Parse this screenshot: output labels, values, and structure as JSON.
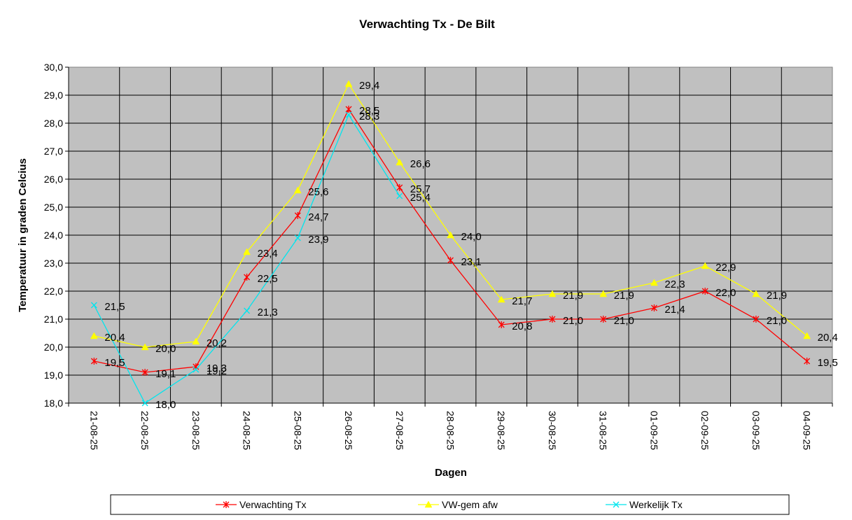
{
  "chart_data": {
    "type": "line",
    "title": "Verwachting Tx - De Bilt",
    "xlabel": "Dagen",
    "ylabel": "Temperatuur in graden Celcius",
    "ylim": [
      18.0,
      30.0
    ],
    "ystep": 1.0,
    "grid": true,
    "legend_position": "bottom",
    "plot_background": "#c0c0c0",
    "categories": [
      "21-08-25",
      "22-08-25",
      "23-08-25",
      "24-08-25",
      "25-08-25",
      "26-08-25",
      "27-08-25",
      "28-08-25",
      "29-08-25",
      "30-08-25",
      "31-08-25",
      "01-09-25",
      "02-09-25",
      "03-09-25",
      "04-09-25"
    ],
    "series": [
      {
        "name": "Verwachting Tx",
        "color": "#ff0000",
        "marker": "star",
        "values": [
          19.5,
          19.1,
          19.3,
          22.5,
          24.7,
          28.5,
          25.7,
          23.1,
          20.8,
          21.0,
          21.0,
          21.4,
          22.0,
          21.0,
          19.5
        ],
        "labels": [
          "19,5",
          "19,1",
          "19,3",
          "22,5",
          "24,7",
          "28,5",
          "25,7",
          "23,1",
          "20,8",
          "21,0",
          "21,0",
          "21,4",
          "22,0",
          "21,0",
          "19,5"
        ]
      },
      {
        "name": "VW-gem afw",
        "color": "#ffff00",
        "marker": "triangle",
        "values": [
          20.4,
          20.0,
          20.2,
          23.4,
          25.6,
          29.4,
          26.6,
          24.0,
          21.7,
          21.9,
          21.9,
          22.3,
          22.9,
          21.9,
          20.4
        ],
        "labels": [
          "20,4",
          "20,0",
          "20,2",
          "23,4",
          "25,6",
          "29,4",
          "26,6",
          "24,0",
          "21,7",
          "21,9",
          "21,9",
          "22,3",
          "22,9",
          "21,9",
          "20,4"
        ]
      },
      {
        "name": "Werkelijk Tx",
        "color": "#00e5ee",
        "marker": "x",
        "values": [
          21.5,
          18.0,
          19.2,
          21.3,
          23.9,
          28.3,
          25.4,
          null,
          null,
          null,
          null,
          null,
          null,
          null,
          null
        ],
        "labels": [
          "21,5",
          "18,0",
          "19,2",
          "21,3",
          "23,9",
          "28,3",
          "25,4",
          null,
          null,
          null,
          null,
          null,
          null,
          null,
          null
        ]
      }
    ],
    "ytick_labels": [
      "18,0",
      "19,0",
      "20,0",
      "21,0",
      "22,0",
      "23,0",
      "24,0",
      "25,0",
      "26,0",
      "27,0",
      "28,0",
      "29,0",
      "30,0"
    ]
  }
}
